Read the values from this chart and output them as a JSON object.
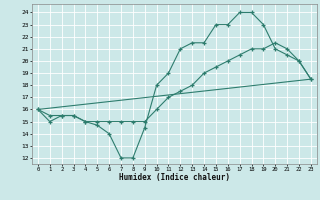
{
  "bg_color": "#cce8e8",
  "grid_color": "#b8d8d8",
  "line_color": "#2e7d6e",
  "xlabel": "Humidex (Indice chaleur)",
  "xlim": [
    -0.5,
    23.5
  ],
  "ylim": [
    11.5,
    24.7
  ],
  "ytick_vals": [
    12,
    13,
    14,
    15,
    16,
    17,
    18,
    19,
    20,
    21,
    22,
    23,
    24
  ],
  "xtick_vals": [
    0,
    1,
    2,
    3,
    4,
    5,
    6,
    7,
    8,
    9,
    10,
    11,
    12,
    13,
    14,
    15,
    16,
    17,
    18,
    19,
    20,
    21,
    22,
    23
  ],
  "line1_x": [
    0,
    1,
    2,
    3,
    4,
    5,
    6,
    7,
    8,
    9,
    10,
    11,
    12,
    13,
    14,
    15,
    16,
    17,
    18,
    19,
    20,
    21,
    22,
    23
  ],
  "line1_y": [
    16,
    15,
    15.5,
    15.5,
    15,
    14.7,
    14,
    12,
    12,
    14.5,
    18,
    19,
    21,
    21.5,
    21.5,
    23,
    23,
    24,
    24,
    23,
    21,
    20.5,
    20,
    18.5
  ],
  "line2_x": [
    0,
    1,
    2,
    3,
    4,
    5,
    6,
    7,
    8,
    9,
    10,
    11,
    12,
    13,
    14,
    15,
    16,
    17,
    18,
    19,
    20,
    21,
    22,
    23
  ],
  "line2_y": [
    16,
    15.5,
    15.5,
    15.5,
    15,
    15,
    15,
    15,
    15,
    15,
    16,
    17,
    17.5,
    18,
    19,
    19.5,
    20,
    20.5,
    21,
    21,
    21.5,
    21,
    20,
    18.5
  ],
  "line3_x": [
    0,
    23
  ],
  "line3_y": [
    16,
    18.5
  ]
}
